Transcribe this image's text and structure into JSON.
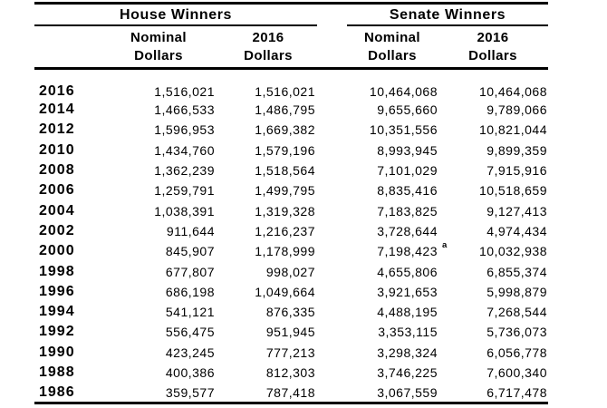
{
  "table": {
    "groups": {
      "house": "House Winners",
      "senate": "Senate Winners"
    },
    "column_headers": {
      "house_nominal": {
        "line1": "Nominal",
        "line2": "Dollars"
      },
      "house_real": {
        "line1": "2016",
        "line2": "Dollars"
      },
      "senate_nominal": {
        "line1": "Nominal",
        "line2": "Dollars"
      },
      "senate_real": {
        "line1": "2016",
        "line2": "Dollars"
      }
    },
    "rows": [
      {
        "year": "2016",
        "house_nominal": "1,516,021",
        "house_2016": "1,516,021",
        "senate_nominal": "10,464,068",
        "senate_2016": "10,464,068"
      },
      {
        "year": "2014",
        "house_nominal": "1,466,533",
        "house_2016": "1,486,795",
        "senate_nominal": "9,655,660",
        "senate_2016": "9,789,066"
      },
      {
        "year": "2012",
        "house_nominal": "1,596,953",
        "house_2016": "1,669,382",
        "senate_nominal": "10,351,556",
        "senate_2016": "10,821,044"
      },
      {
        "year": "2010",
        "house_nominal": "1,434,760",
        "house_2016": "1,579,196",
        "senate_nominal": "8,993,945",
        "senate_2016": "9,899,359"
      },
      {
        "year": "2008",
        "house_nominal": "1,362,239",
        "house_2016": "1,518,564",
        "senate_nominal": "7,101,029",
        "senate_2016": "7,915,916"
      },
      {
        "year": "2006",
        "house_nominal": "1,259,791",
        "house_2016": "1,499,795",
        "senate_nominal": "8,835,416",
        "senate_2016": "10,518,659"
      },
      {
        "year": "2004",
        "house_nominal": "1,038,391",
        "house_2016": "1,319,328",
        "senate_nominal": "7,183,825",
        "senate_2016": "9,127,413"
      },
      {
        "year": "2002",
        "house_nominal": "911,644",
        "house_2016": "1,216,237",
        "senate_nominal": "3,728,644",
        "senate_2016": "4,974,434"
      },
      {
        "year": "2000",
        "house_nominal": "845,907",
        "house_2016": "1,178,999",
        "senate_nominal": "7,198,423",
        "note": "a",
        "senate_2016": "10,032,938"
      },
      {
        "year": "1998",
        "house_nominal": "677,807",
        "house_2016": "998,027",
        "senate_nominal": "4,655,806",
        "senate_2016": "6,855,374"
      },
      {
        "year": "1996",
        "house_nominal": "686,198",
        "house_2016": "1,049,664",
        "senate_nominal": "3,921,653",
        "senate_2016": "5,998,879"
      },
      {
        "year": "1994",
        "house_nominal": "541,121",
        "house_2016": "876,335",
        "senate_nominal": "4,488,195",
        "senate_2016": "7,268,544"
      },
      {
        "year": "1992",
        "house_nominal": "556,475",
        "house_2016": "951,945",
        "senate_nominal": "3,353,115",
        "senate_2016": "5,736,073"
      },
      {
        "year": "1990",
        "house_nominal": "423,245",
        "house_2016": "777,213",
        "senate_nominal": "3,298,324",
        "senate_2016": "6,056,778"
      },
      {
        "year": "1988",
        "house_nominal": "400,386",
        "house_2016": "812,303",
        "senate_nominal": "3,746,225",
        "senate_2016": "7,600,340"
      },
      {
        "year": "1986",
        "house_nominal": "359,577",
        "house_2016": "787,418",
        "senate_nominal": "3,067,559",
        "senate_2016": "6,717,478"
      }
    ],
    "colors": {
      "text": "#000000",
      "background": "#ffffff",
      "rule": "#000000"
    }
  }
}
